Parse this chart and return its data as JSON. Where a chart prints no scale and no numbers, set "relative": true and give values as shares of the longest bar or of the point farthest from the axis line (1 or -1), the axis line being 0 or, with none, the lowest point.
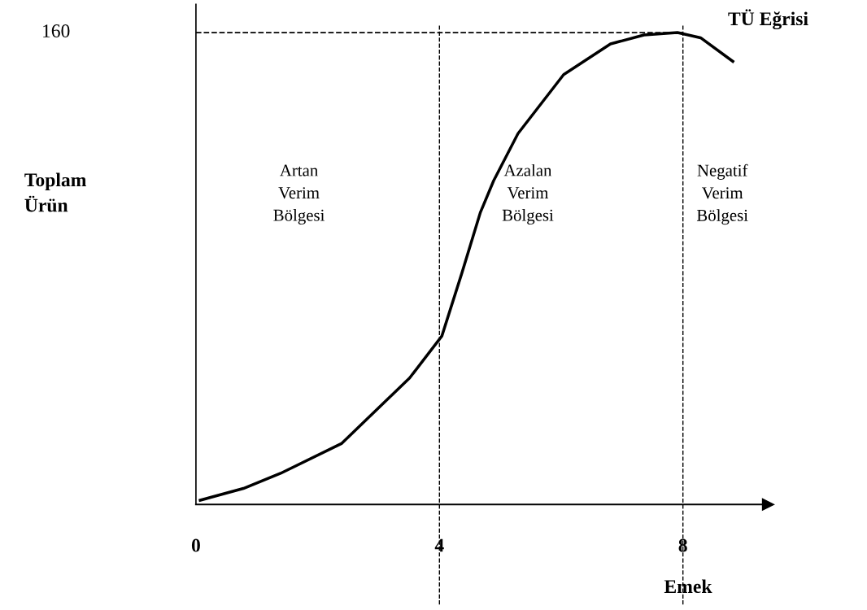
{
  "chart_data": {
    "type": "line",
    "xlabel": "Emek",
    "relative": true,
    "x": [
      0.07,
      0.78,
      1.39,
      2.39,
      3.51,
      4.04,
      4.37,
      4.67,
      4.89,
      5.29,
      6.04,
      6.81,
      7.36,
      7.91,
      8.29,
      8.82
    ],
    "series": [
      {
        "color": "#000000",
        "values": [
          0.009,
          0.034,
          0.066,
          0.129,
          0.268,
          0.357,
          0.491,
          0.618,
          0.686,
          0.786,
          0.911,
          0.976,
          0.995,
          1,
          0.989,
          0.939
        ]
      }
    ],
    "xlim": [
      0,
      9.4
    ],
    "xticks": [
      0,
      4,
      8
    ],
    "ref_lines": [
      {
        "axis": "x",
        "value": 4,
        "line_style": "dashed"
      },
      {
        "axis": "x",
        "value": 8,
        "line_style": "dashed"
      },
      {
        "axis": "y",
        "value": 1,
        "line_style": "dashed"
      }
    ],
    "annotations": [
      "160",
      "Artan\nVerim\nBölgesi",
      "Azalan\nVerim\nBölgesi",
      "Negatif\nVerim\nBölgesi",
      "TÜ Eğrisi",
      "Toplam\nÜrün"
    ],
    "marker": "none",
    "line_style": "solid"
  }
}
